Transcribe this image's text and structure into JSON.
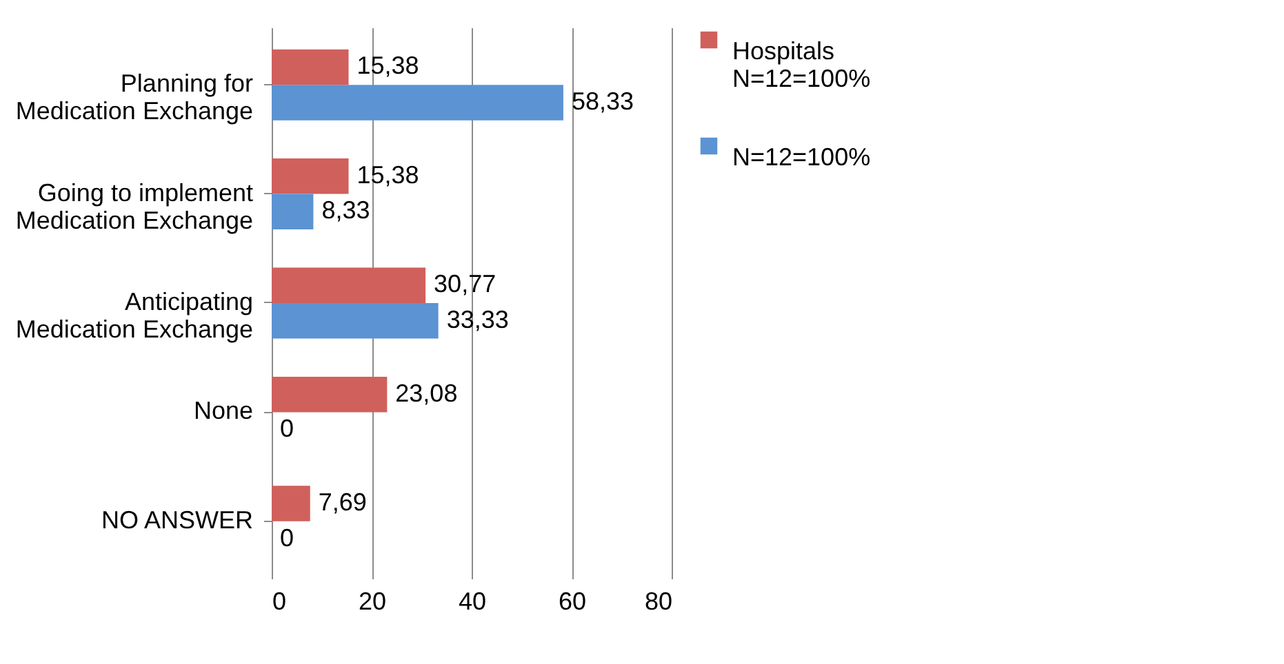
{
  "chart_data": {
    "type": "bar",
    "orientation": "horizontal",
    "categories": [
      "Planning for Medication Exchange",
      "Going to implement Medication Exchange",
      "Anticipating Medication Exchange",
      "None",
      "NO ANSWER"
    ],
    "series": [
      {
        "name": "Hospitals N=12=100%",
        "color": "#d0605c",
        "values": [
          15.38,
          15.38,
          30.77,
          23.08,
          7.69
        ],
        "value_labels": [
          "15,38",
          "15,38",
          "30,77",
          "23,08",
          "7,69"
        ]
      },
      {
        "name": "N=12=100%",
        "color": "#5b93d3",
        "values": [
          58.33,
          8.33,
          33.33,
          0,
          0
        ],
        "value_labels": [
          "58,33",
          "8,33",
          "33,33",
          "0",
          "0"
        ]
      }
    ],
    "xlim": [
      0,
      80
    ],
    "xticks": [
      0,
      20,
      40,
      60,
      80
    ],
    "grid": "x",
    "legend": "right"
  }
}
